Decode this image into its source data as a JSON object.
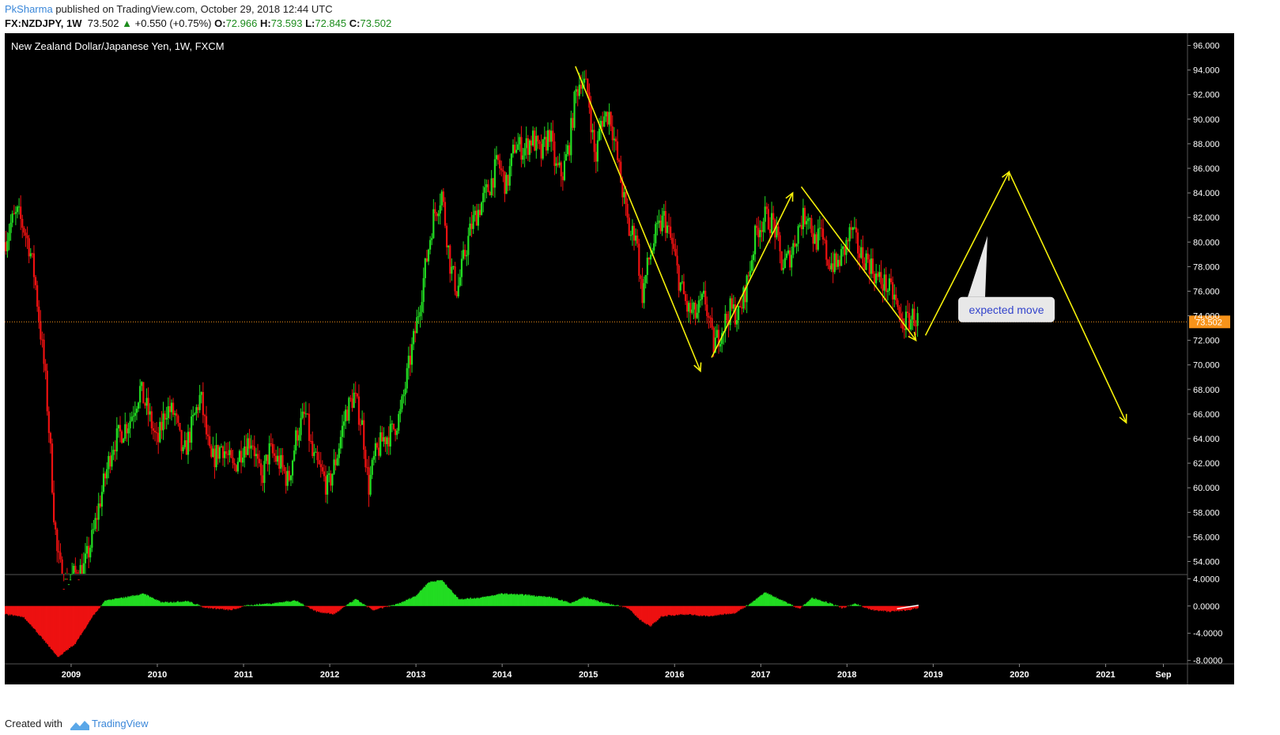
{
  "header": {
    "author": "PkSharma",
    "published_text": "published on TradingView.com, October 29, 2018 12:44 UTC",
    "symbol": "FX:NZDJPY, 1W",
    "last": "73.502",
    "change": "+0.550 (+0.75%)",
    "open_label": "O:",
    "open": "72.966",
    "high_label": "H:",
    "high": "73.593",
    "low_label": "L:",
    "low": "72.845",
    "close_label": "C:",
    "close": "73.502"
  },
  "footer": {
    "created_with": "Created with",
    "brand": "TradingView"
  },
  "colors": {
    "up": "#22dd22",
    "down": "#ee1111",
    "arrow": "#f5f00a",
    "price_label": "#f7931a",
    "background": "#000000"
  },
  "chart_data": {
    "type": "candlestick",
    "title": "New Zealand Dollar/Japanese Yen, 1W, FXCM",
    "current_price": 73.502,
    "current_price_label": "73.502",
    "y_ticks": [
      "96.000",
      "94.000",
      "92.000",
      "90.000",
      "88.000",
      "86.000",
      "84.000",
      "82.000",
      "80.000",
      "78.000",
      "76.000",
      "74.000",
      "72.000",
      "70.000",
      "68.000",
      "66.000",
      "64.000",
      "62.000",
      "60.000",
      "58.000",
      "56.000",
      "54.000"
    ],
    "ylim": [
      53,
      97
    ],
    "x_ticks": [
      "2009",
      "2010",
      "2011",
      "2012",
      "2013",
      "2014",
      "2015",
      "2016",
      "2017",
      "2018",
      "2019",
      "2020",
      "2021",
      "Sep"
    ],
    "xlim": [
      2008.23,
      2021.95
    ],
    "price_path": [
      [
        2008.23,
        80.0
      ],
      [
        2008.3,
        81.5
      ],
      [
        2008.38,
        82.3
      ],
      [
        2008.46,
        81.0
      ],
      [
        2008.52,
        79.5
      ],
      [
        2008.58,
        77.0
      ],
      [
        2008.64,
        73.0
      ],
      [
        2008.7,
        69.0
      ],
      [
        2008.76,
        63.0
      ],
      [
        2008.8,
        58.0
      ],
      [
        2008.84,
        54.5
      ],
      [
        2008.92,
        52.0
      ],
      [
        2009.05,
        53.0
      ],
      [
        2009.15,
        53.5
      ],
      [
        2009.25,
        56.0
      ],
      [
        2009.32,
        58.5
      ],
      [
        2009.4,
        61.0
      ],
      [
        2009.48,
        63.5
      ],
      [
        2009.58,
        64.5
      ],
      [
        2009.68,
        65.5
      ],
      [
        2009.8,
        68.0
      ],
      [
        2009.9,
        66.0
      ],
      [
        2010.0,
        63.5
      ],
      [
        2010.1,
        66.5
      ],
      [
        2010.2,
        66.0
      ],
      [
        2010.3,
        62.5
      ],
      [
        2010.4,
        65.0
      ],
      [
        2010.5,
        67.5
      ],
      [
        2010.62,
        62.0
      ],
      [
        2010.75,
        63.5
      ],
      [
        2010.88,
        61.5
      ],
      [
        2011.0,
        63.5
      ],
      [
        2011.1,
        64.0
      ],
      [
        2011.2,
        60.5
      ],
      [
        2011.3,
        63.0
      ],
      [
        2011.42,
        62.0
      ],
      [
        2011.52,
        60.5
      ],
      [
        2011.62,
        64.5
      ],
      [
        2011.72,
        66.0
      ],
      [
        2011.8,
        62.5
      ],
      [
        2011.88,
        61.5
      ],
      [
        2011.98,
        60.0
      ],
      [
        2012.08,
        62.5
      ],
      [
        2012.18,
        66.0
      ],
      [
        2012.28,
        67.5
      ],
      [
        2012.38,
        65.0
      ],
      [
        2012.45,
        60.0
      ],
      [
        2012.52,
        62.5
      ],
      [
        2012.62,
        64.0
      ],
      [
        2012.72,
        64.5
      ],
      [
        2012.82,
        66.0
      ],
      [
        2012.92,
        70.0
      ],
      [
        2013.0,
        73.0
      ],
      [
        2013.1,
        77.5
      ],
      [
        2013.2,
        82.0
      ],
      [
        2013.3,
        84.0
      ],
      [
        2013.4,
        78.0
      ],
      [
        2013.48,
        76.0
      ],
      [
        2013.55,
        78.5
      ],
      [
        2013.65,
        81.5
      ],
      [
        2013.75,
        83.0
      ],
      [
        2013.85,
        84.5
      ],
      [
        2013.95,
        86.5
      ],
      [
        2014.05,
        84.5
      ],
      [
        2014.15,
        88.0
      ],
      [
        2014.25,
        87.5
      ],
      [
        2014.35,
        88.5
      ],
      [
        2014.45,
        87.0
      ],
      [
        2014.55,
        89.0
      ],
      [
        2014.62,
        86.0
      ],
      [
        2014.7,
        85.5
      ],
      [
        2014.78,
        88.0
      ],
      [
        2014.85,
        92.0
      ],
      [
        2014.92,
        93.5
      ],
      [
        2015.0,
        92.0
      ],
      [
        2015.08,
        86.5
      ],
      [
        2015.15,
        90.0
      ],
      [
        2015.25,
        90.5
      ],
      [
        2015.33,
        87.0
      ],
      [
        2015.4,
        84.0
      ],
      [
        2015.48,
        80.5
      ],
      [
        2015.55,
        81.0
      ],
      [
        2015.62,
        75.5
      ],
      [
        2015.7,
        78.5
      ],
      [
        2015.78,
        80.5
      ],
      [
        2015.88,
        82.0
      ],
      [
        2015.98,
        79.5
      ],
      [
        2016.05,
        77.0
      ],
      [
        2016.15,
        74.5
      ],
      [
        2016.25,
        74.0
      ],
      [
        2016.35,
        75.5
      ],
      [
        2016.45,
        71.5
      ],
      [
        2016.55,
        73.0
      ],
      [
        2016.65,
        74.5
      ],
      [
        2016.75,
        74.0
      ],
      [
        2016.85,
        77.0
      ],
      [
        2016.95,
        81.0
      ],
      [
        2017.05,
        82.0
      ],
      [
        2017.15,
        81.5
      ],
      [
        2017.25,
        78.0
      ],
      [
        2017.35,
        79.0
      ],
      [
        2017.45,
        81.5
      ],
      [
        2017.55,
        82.5
      ],
      [
        2017.62,
        80.0
      ],
      [
        2017.7,
        80.5
      ],
      [
        2017.78,
        78.5
      ],
      [
        2017.88,
        78.0
      ],
      [
        2017.98,
        79.5
      ],
      [
        2018.05,
        81.0
      ],
      [
        2018.15,
        79.0
      ],
      [
        2018.25,
        78.5
      ],
      [
        2018.35,
        77.0
      ],
      [
        2018.45,
        76.5
      ],
      [
        2018.55,
        75.5
      ],
      [
        2018.62,
        73.5
      ],
      [
        2018.7,
        73.5
      ],
      [
        2018.77,
        74.0
      ],
      [
        2018.83,
        73.5
      ]
    ],
    "oscillator": {
      "y_ticks": [
        "4.0000",
        "0.0000",
        "-4.0000",
        "-8.0000"
      ],
      "ylim": [
        -8.5,
        4.5
      ],
      "path": [
        [
          2008.23,
          -1.2
        ],
        [
          2008.45,
          -1.6
        ],
        [
          2008.65,
          -4.5
        ],
        [
          2008.85,
          -7.5
        ],
        [
          2009.05,
          -5.5
        ],
        [
          2009.25,
          -1.5
        ],
        [
          2009.4,
          0.8
        ],
        [
          2009.6,
          1.2
        ],
        [
          2009.85,
          1.8
        ],
        [
          2010.05,
          0.5
        ],
        [
          2010.35,
          0.7
        ],
        [
          2010.55,
          -0.2
        ],
        [
          2010.85,
          -0.6
        ],
        [
          2011.05,
          0.1
        ],
        [
          2011.35,
          0.4
        ],
        [
          2011.6,
          0.8
        ],
        [
          2011.85,
          -0.8
        ],
        [
          2012.05,
          -1.2
        ],
        [
          2012.3,
          1.0
        ],
        [
          2012.5,
          -0.6
        ],
        [
          2012.8,
          0.3
        ],
        [
          2013.0,
          1.5
        ],
        [
          2013.15,
          3.5
        ],
        [
          2013.3,
          3.8
        ],
        [
          2013.5,
          1.0
        ],
        [
          2013.75,
          1.2
        ],
        [
          2014.0,
          1.8
        ],
        [
          2014.3,
          1.6
        ],
        [
          2014.6,
          1.2
        ],
        [
          2014.8,
          0.4
        ],
        [
          2014.95,
          1.3
        ],
        [
          2015.2,
          0.4
        ],
        [
          2015.45,
          -0.2
        ],
        [
          2015.6,
          -2.0
        ],
        [
          2015.72,
          -3.0
        ],
        [
          2015.85,
          -1.5
        ],
        [
          2016.1,
          -1.2
        ],
        [
          2016.4,
          -1.5
        ],
        [
          2016.7,
          -1.0
        ],
        [
          2016.9,
          0.5
        ],
        [
          2017.05,
          2.0
        ],
        [
          2017.25,
          0.8
        ],
        [
          2017.45,
          -0.4
        ],
        [
          2017.6,
          1.2
        ],
        [
          2017.8,
          0.4
        ],
        [
          2017.95,
          -0.3
        ],
        [
          2018.1,
          0.3
        ],
        [
          2018.3,
          -0.6
        ],
        [
          2018.5,
          -0.8
        ],
        [
          2018.7,
          -0.6
        ],
        [
          2018.83,
          -0.3
        ]
      ]
    },
    "annotations": {
      "arrows": [
        [
          [
            2014.85,
            94.3
          ],
          [
            2016.3,
            69.5
          ]
        ],
        [
          [
            2016.43,
            70.6
          ],
          [
            2017.37,
            84.0
          ]
        ],
        [
          [
            2017.47,
            84.5
          ],
          [
            2018.8,
            72.0
          ]
        ],
        [
          [
            2018.91,
            72.4
          ],
          [
            2019.88,
            85.7
          ],
          [
            2021.24,
            65.3
          ]
        ]
      ],
      "callout": {
        "text": "expected move",
        "x": 2019.85,
        "y": 74.5,
        "pointer": [
          2019.63,
          80.5
        ]
      }
    }
  }
}
